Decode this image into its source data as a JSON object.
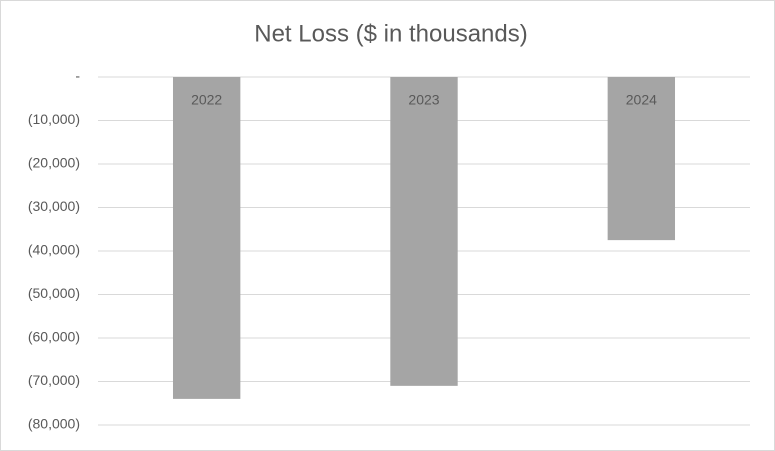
{
  "chart_data": {
    "type": "bar",
    "title": "Net Loss ($ in thousands)",
    "categories": [
      "2022",
      "2023",
      "2024"
    ],
    "values": [
      -74000,
      -71000,
      -37500
    ],
    "color": "#a5a5a5",
    "ylim": [
      -80000,
      0
    ],
    "yticks": [
      {
        "value": 0,
        "label": "-"
      },
      {
        "value": -10000,
        "label": "(10,000)"
      },
      {
        "value": -20000,
        "label": "(20,000)"
      },
      {
        "value": -30000,
        "label": "(30,000)"
      },
      {
        "value": -40000,
        "label": "(40,000)"
      },
      {
        "value": -50000,
        "label": "(50,000)"
      },
      {
        "value": -60000,
        "label": "(60,000)"
      },
      {
        "value": -70000,
        "label": "(70,000)"
      },
      {
        "value": -80000,
        "label": "(80,000)"
      }
    ],
    "grid": true
  }
}
